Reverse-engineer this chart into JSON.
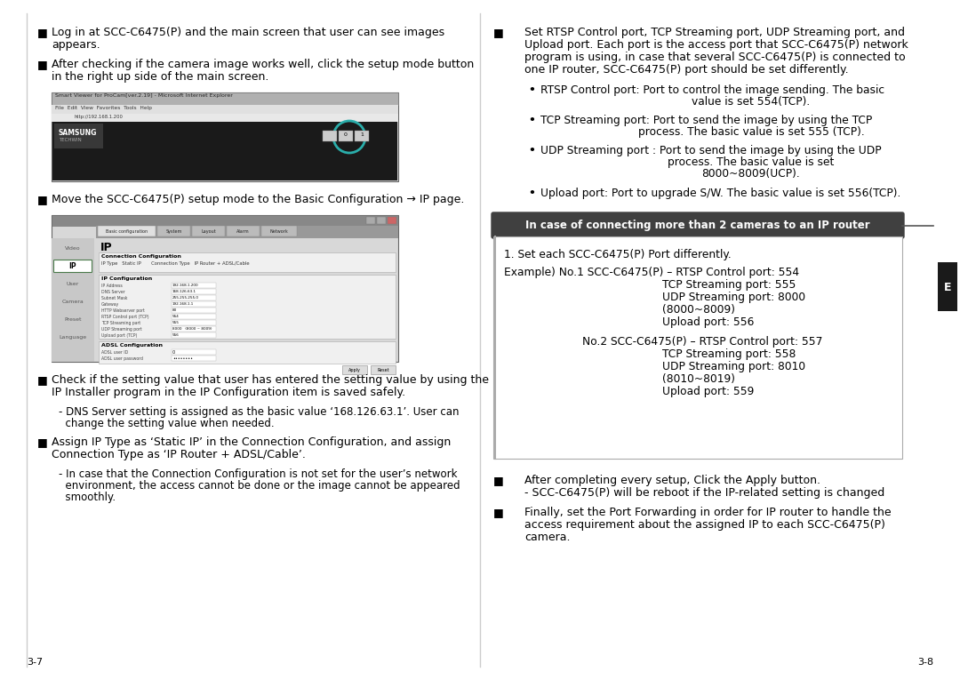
{
  "page_bg": "#ffffff",
  "page_number_left": "3-7",
  "page_number_right": "3-8",
  "sidebar_label": "E",
  "sidebar_color": "#1a1a1a",
  "sidebar_text_color": "#ffffff",
  "box_title": "In case of connecting more than 2 cameras to an IP router",
  "sub_items": [
    [
      "RTSP Control port: Port to control the image sending. The basic",
      "value is set 554(TCP)."
    ],
    [
      "TCP Streaming port: Port to send the image by using the TCP",
      "process. The basic value is set 555 (TCP)."
    ],
    [
      "UDP Streaming port : Port to send the image by using the UDP",
      "process. The basic value is set",
      "8000~8009(UCP)."
    ],
    [
      "Upload port: Port to upgrade S/W. The basic value is set 556(TCP)."
    ]
  ]
}
